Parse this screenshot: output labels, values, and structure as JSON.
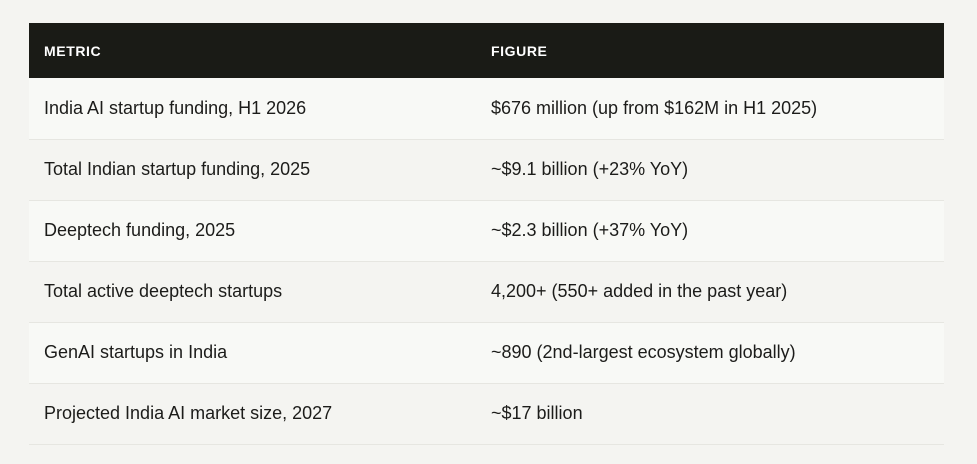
{
  "table": {
    "headers": {
      "metric": "METRIC",
      "figure": "FIGURE"
    },
    "rows": [
      {
        "metric": "India AI startup funding, H1 2026",
        "figure": "$676 million (up from $162M in H1 2025)"
      },
      {
        "metric": "Total Indian startup funding, 2025",
        "figure": "~$9.1 billion (+23% YoY)"
      },
      {
        "metric": "Deeptech funding, 2025",
        "figure": "~$2.3 billion (+37% YoY)"
      },
      {
        "metric": "Total active deeptech startups",
        "figure": "4,200+ (550+ added in the past year)"
      },
      {
        "metric": "GenAI startups in India",
        "figure": "~890 (2nd-largest ecosystem globally)"
      },
      {
        "metric": "Projected India AI market size, 2027",
        "figure": "~$17 billion"
      }
    ]
  },
  "colors": {
    "header_bg": "#1a1b16",
    "header_text": "#ffffff",
    "row_alt_bg": "#f8f9f6",
    "page_bg": "#f4f4f1"
  }
}
